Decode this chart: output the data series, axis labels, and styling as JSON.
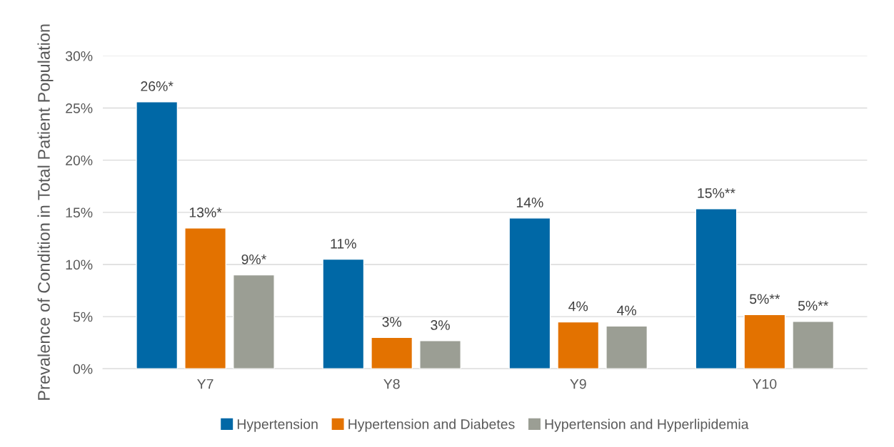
{
  "chart_data": {
    "type": "bar",
    "ylabel": "Prevalence of Condition in Total Patient Population",
    "categories": [
      "Y7",
      "Y8",
      "Y9",
      "Y10"
    ],
    "series": [
      {
        "name": "Hypertension",
        "color": "#0068a6",
        "values": [
          25.6,
          10.5,
          14.45,
          15.35
        ],
        "value_labels": [
          "26%*",
          "11%",
          "14%",
          "15%**"
        ]
      },
      {
        "name": "Hypertension and Diabetes",
        "color": "#e37200",
        "values": [
          13.5,
          3.0,
          4.5,
          5.2
        ],
        "value_labels": [
          "13%*",
          "3%",
          "4%",
          "5%**"
        ]
      },
      {
        "name": "Hypertension and Hyperlipidemia",
        "color": "#9b9e94",
        "values": [
          9.0,
          2.7,
          4.1,
          4.55
        ],
        "value_labels": [
          "9%*",
          "3%",
          "4%",
          "5%**"
        ]
      }
    ],
    "ylim": [
      0,
      30
    ],
    "yticks": [
      {
        "value": 0,
        "label": "0%"
      },
      {
        "value": 5,
        "label": "5%"
      },
      {
        "value": 10,
        "label": "10%"
      },
      {
        "value": 15,
        "label": "15%"
      },
      {
        "value": 20,
        "label": "20%"
      },
      {
        "value": 25,
        "label": "25%"
      },
      {
        "value": 30,
        "label": "30%"
      }
    ],
    "grid": "y",
    "legend": "bottom"
  }
}
